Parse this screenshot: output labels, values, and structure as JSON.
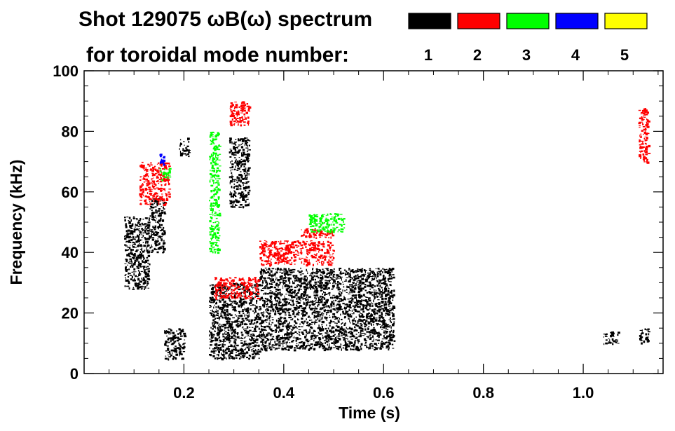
{
  "chart_data": {
    "type": "scatter",
    "title": "Shot 129075 ωB(ω) spectrum",
    "subtitle": "for toroidal mode number:",
    "xlabel": "Time (s)",
    "ylabel": "Frequency (kHz)",
    "xlim": [
      0.0,
      1.16
    ],
    "ylim": [
      0,
      100
    ],
    "x_ticks": [
      0.2,
      0.4,
      0.6,
      0.8,
      1.0
    ],
    "x_tick_labels": [
      "0.2",
      "0.4",
      "0.6",
      "0.8",
      "1.0"
    ],
    "y_ticks": [
      0,
      20,
      40,
      60,
      80,
      100
    ],
    "y_tick_labels": [
      "0",
      "20",
      "40",
      "60",
      "80",
      "100"
    ],
    "grid": false,
    "legend_position": "top-right",
    "series": [
      {
        "name": "1",
        "color": "#000000",
        "regions": [
          {
            "x": [
              0.08,
              0.13
            ],
            "y": [
              28,
              52
            ]
          },
          {
            "x": [
              0.13,
              0.16
            ],
            "y": [
              40,
              58
            ]
          },
          {
            "x": [
              0.16,
              0.2
            ],
            "y": [
              5,
              15
            ]
          },
          {
            "x": [
              0.19,
              0.21
            ],
            "y": [
              72,
              78
            ]
          },
          {
            "x": [
              0.25,
              0.35
            ],
            "y": [
              5,
              30
            ]
          },
          {
            "x": [
              0.29,
              0.33
            ],
            "y": [
              55,
              78
            ]
          },
          {
            "x": [
              0.35,
              0.62
            ],
            "y": [
              8,
              35
            ]
          },
          {
            "x": [
              1.04,
              1.07
            ],
            "y": [
              10,
              14
            ]
          },
          {
            "x": [
              1.11,
              1.13
            ],
            "y": [
              10,
              15
            ]
          }
        ]
      },
      {
        "name": "2",
        "color": "#ff0000",
        "regions": [
          {
            "x": [
              0.11,
              0.17
            ],
            "y": [
              56,
              70
            ]
          },
          {
            "x": [
              0.29,
              0.33
            ],
            "y": [
              82,
              90
            ]
          },
          {
            "x": [
              0.26,
              0.35
            ],
            "y": [
              25,
              32
            ]
          },
          {
            "x": [
              0.35,
              0.5
            ],
            "y": [
              36,
              44
            ]
          },
          {
            "x": [
              0.43,
              0.5
            ],
            "y": [
              45,
              48
            ]
          },
          {
            "x": [
              1.11,
              1.13
            ],
            "y": [
              70,
              88
            ]
          }
        ]
      },
      {
        "name": "3",
        "color": "#00ff00",
        "regions": [
          {
            "x": [
              0.15,
              0.17
            ],
            "y": [
              64,
              68
            ]
          },
          {
            "x": [
              0.45,
              0.52
            ],
            "y": [
              47,
              53
            ]
          },
          {
            "x": [
              0.25,
              0.27
            ],
            "y": [
              40,
              80
            ]
          }
        ]
      },
      {
        "name": "4",
        "color": "#0000ff",
        "regions": [
          {
            "x": [
              0.15,
              0.16
            ],
            "y": [
              68,
              73
            ]
          }
        ]
      },
      {
        "name": "5",
        "color": "#ffff00",
        "regions": []
      }
    ]
  }
}
